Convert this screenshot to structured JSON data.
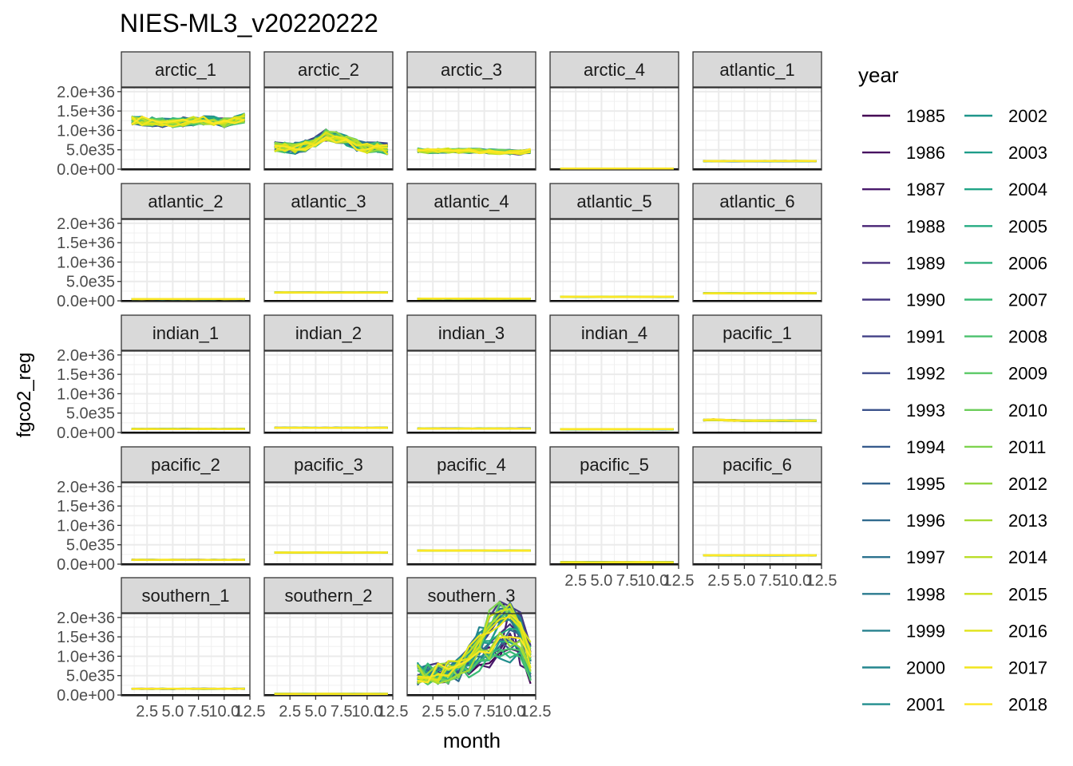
{
  "chart_data": {
    "type": "line",
    "title": "NIES-ML3_v20220222",
    "xlabel": "month",
    "ylabel": "fgco2_reg",
    "xlim": [
      0,
      12.5
    ],
    "ylim": [
      -2e+34,
      2.1e+36
    ],
    "x_ticks": [
      2.5,
      5.0,
      7.5,
      10.0,
      12.5
    ],
    "x_tick_labels": [
      "2.5",
      "5.0",
      "7.5",
      "10.0",
      "12.5"
    ],
    "y_ticks": [
      0,
      5e+35,
      1e+36,
      1.5e+36,
      2e+36
    ],
    "y_tick_labels": [
      "0.0e+00",
      "5.0e35",
      "1.0e+36",
      "1.5e+36",
      "2.0e+36"
    ],
    "grid": true,
    "reference_line_y": 0,
    "legend": {
      "title": "year",
      "placement": "right",
      "years": [
        "1985",
        "1986",
        "1987",
        "1988",
        "1989",
        "1990",
        "1991",
        "1992",
        "1993",
        "1994",
        "1995",
        "1996",
        "1997",
        "1998",
        "1999",
        "2000",
        "2001",
        "2002",
        "2003",
        "2004",
        "2005",
        "2006",
        "2007",
        "2008",
        "2009",
        "2010",
        "2011",
        "2012",
        "2013",
        "2014",
        "2015",
        "2016",
        "2017",
        "2018"
      ],
      "colors": [
        "#440154",
        "#470d60",
        "#48196b",
        "#482374",
        "#472d7b",
        "#453781",
        "#424086",
        "#3e4989",
        "#3b528b",
        "#375b8d",
        "#33638d",
        "#306a8e",
        "#2c728e",
        "#297a8e",
        "#26818e",
        "#24868e",
        "#218e8d",
        "#1f968b",
        "#1e9d89",
        "#20a486",
        "#25ab82",
        "#2eb37c",
        "#3bbb75",
        "#4ac16d",
        "#5ac864",
        "#6ccd5a",
        "#7ed34f",
        "#95d840",
        "#a8db34",
        "#bade28",
        "#cde11d",
        "#e0e318",
        "#f1e51d",
        "#fde725"
      ]
    },
    "x_months": [
      1,
      2,
      3,
      4,
      5,
      6,
      7,
      8,
      9,
      10,
      11,
      12
    ],
    "facets": [
      {
        "name": "arctic_1",
        "profile": [
          1.27e+36,
          1.25e+36,
          1.22e+36,
          1.2e+36,
          1.2e+36,
          1.22e+36,
          1.24e+36,
          1.26e+36,
          1.24e+36,
          1.2e+36,
          1.24e+36,
          1.32e+36
        ],
        "amp": 1.2e+35
      },
      {
        "name": "arctic_2",
        "profile": [
          6e+35,
          5.5e+35,
          5.4e+35,
          6e+35,
          7.2e+35,
          8.8e+35,
          8.2e+35,
          7.2e+35,
          6.2e+35,
          5.6e+35,
          5.6e+35,
          5.2e+35
        ],
        "amp": 1.5e+35
      },
      {
        "name": "arctic_3",
        "profile": [
          4.9e+35,
          4.7e+35,
          4.7e+35,
          4.8e+35,
          4.7e+35,
          4.7e+35,
          4.7e+35,
          4.6e+35,
          4.5e+35,
          4.4e+35,
          4.3e+35,
          4.7e+35
        ],
        "amp": 6e+34
      },
      {
        "name": "arctic_4",
        "profile": [
          1.5e+34,
          1.5e+34,
          1.5e+34,
          1.5e+34,
          1.5e+34,
          1.5e+34,
          1.5e+34,
          1.5e+34,
          1.5e+34,
          1.5e+34,
          1.5e+34,
          1.5e+34
        ],
        "amp": 2e+33
      },
      {
        "name": "atlantic_1",
        "profile": [
          2.1e+35,
          2.1e+35,
          2.1e+35,
          2.1e+35,
          2.1e+35,
          2.1e+35,
          2.1e+35,
          2.1e+35,
          2.1e+35,
          2.1e+35,
          2.1e+35,
          2.1e+35
        ],
        "amp": 6e+33
      },
      {
        "name": "atlantic_2",
        "profile": [
          4.5e+34,
          4.5e+34,
          4.5e+34,
          4.5e+34,
          4.5e+34,
          4.5e+34,
          4.5e+34,
          4.5e+34,
          4.5e+34,
          4.5e+34,
          4.5e+34,
          4.5e+34
        ],
        "amp": 4e+33
      },
      {
        "name": "atlantic_3",
        "profile": [
          2.15e+35,
          2.15e+35,
          2.15e+35,
          2.15e+35,
          2.15e+35,
          2.15e+35,
          2.15e+35,
          2.15e+35,
          2.15e+35,
          2.15e+35,
          2.15e+35,
          2.15e+35
        ],
        "amp": 5e+33
      },
      {
        "name": "atlantic_4",
        "profile": [
          5.5e+34,
          5.5e+34,
          5.5e+34,
          5.5e+34,
          5.5e+34,
          5.5e+34,
          5.5e+34,
          5.5e+34,
          5.5e+34,
          5.5e+34,
          5.5e+34,
          5.5e+34
        ],
        "amp": 5e+33
      },
      {
        "name": "atlantic_5",
        "profile": [
          1.05e+35,
          1.05e+35,
          1.05e+35,
          1.05e+35,
          1.05e+35,
          1.05e+35,
          1.05e+35,
          1.05e+35,
          1.05e+35,
          1.05e+35,
          1.05e+35,
          1.05e+35
        ],
        "amp": 6e+33
      },
      {
        "name": "atlantic_6",
        "profile": [
          1.95e+35,
          1.95e+35,
          1.95e+35,
          1.95e+35,
          1.95e+35,
          1.95e+35,
          1.95e+35,
          1.95e+35,
          1.95e+35,
          1.95e+35,
          1.95e+35,
          1.95e+35
        ],
        "amp": 6e+33
      },
      {
        "name": "indian_1",
        "profile": [
          9e+34,
          9e+34,
          9e+34,
          9e+34,
          9e+34,
          9e+34,
          9e+34,
          9e+34,
          9e+34,
          9e+34,
          9e+34,
          9e+34
        ],
        "amp": 5e+33
      },
      {
        "name": "indian_2",
        "profile": [
          1.2e+35,
          1.2e+35,
          1.2e+35,
          1.2e+35,
          1.2e+35,
          1.2e+35,
          1.2e+35,
          1.2e+35,
          1.2e+35,
          1.2e+35,
          1.2e+35,
          1.2e+35
        ],
        "amp": 5e+33
      },
      {
        "name": "indian_3",
        "profile": [
          1e+35,
          1e+35,
          1e+35,
          1e+35,
          1e+35,
          1e+35,
          1e+35,
          1e+35,
          1e+35,
          1e+35,
          1e+35,
          1e+35
        ],
        "amp": 5e+33
      },
      {
        "name": "indian_4",
        "profile": [
          8.5e+34,
          8.5e+34,
          8.5e+34,
          8.5e+34,
          8.5e+34,
          8.5e+34,
          8.5e+34,
          8.5e+34,
          8.5e+34,
          8.5e+34,
          8.5e+34,
          8.5e+34
        ],
        "amp": 4e+33
      },
      {
        "name": "pacific_1",
        "profile": [
          3.2e+35,
          3.3e+35,
          3.2e+35,
          3.1e+35,
          3.05e+35,
          3.05e+35,
          3.05e+35,
          3.05e+35,
          3.05e+35,
          3.05e+35,
          3.05e+35,
          3.05e+35
        ],
        "amp": 1.2e+34
      },
      {
        "name": "pacific_2",
        "profile": [
          1.1e+35,
          1.1e+35,
          1.1e+35,
          1.1e+35,
          1.1e+35,
          1.1e+35,
          1.1e+35,
          1.1e+35,
          1.1e+35,
          1.1e+35,
          1.1e+35,
          1.1e+35
        ],
        "amp": 5e+33
      },
      {
        "name": "pacific_3",
        "profile": [
          3e+35,
          3e+35,
          3e+35,
          3e+35,
          3e+35,
          3e+35,
          3e+35,
          3e+35,
          3e+35,
          3e+35,
          3e+35,
          3e+35
        ],
        "amp": 5e+33
      },
      {
        "name": "pacific_4",
        "profile": [
          3.5e+35,
          3.5e+35,
          3.5e+35,
          3.5e+35,
          3.5e+35,
          3.5e+35,
          3.5e+35,
          3.5e+35,
          3.5e+35,
          3.5e+35,
          3.5e+35,
          3.5e+35
        ],
        "amp": 6e+33
      },
      {
        "name": "pacific_5",
        "profile": [
          5e+34,
          5e+34,
          5e+34,
          5e+34,
          5e+34,
          5e+34,
          5e+34,
          5e+34,
          5e+34,
          5e+34,
          5e+34,
          5e+34
        ],
        "amp": 4e+33
      },
      {
        "name": "pacific_6",
        "profile": [
          2.3e+35,
          2.3e+35,
          2.3e+35,
          2.3e+35,
          2.3e+35,
          2.3e+35,
          2.3e+35,
          2.3e+35,
          2.3e+35,
          2.3e+35,
          2.3e+35,
          2.3e+35
        ],
        "amp": 5e+33
      },
      {
        "name": "southern_1",
        "profile": [
          1.6e+35,
          1.6e+35,
          1.6e+35,
          1.6e+35,
          1.6e+35,
          1.6e+35,
          1.6e+35,
          1.6e+35,
          1.6e+35,
          1.6e+35,
          1.6e+35,
          1.6e+35
        ],
        "amp": 5e+33
      },
      {
        "name": "southern_2",
        "profile": [
          3e+34,
          3e+34,
          3e+34,
          3e+34,
          3e+34,
          3e+34,
          3e+34,
          3e+34,
          3e+34,
          3e+34,
          3e+34,
          3e+34
        ],
        "amp": 3e+33
      },
      {
        "name": "southern_3",
        "profile": [
          5.5e+35,
          5.5e+35,
          5.6e+35,
          5.8e+35,
          6.5e+35,
          8.5e+35,
          1.1e+36,
          1.35e+36,
          1.55e+36,
          1.6e+36,
          1.4e+36,
          8e+35
        ],
        "amp": 3e+35,
        "bloom": true,
        "bloom_peak": 2.25e+36
      }
    ]
  }
}
